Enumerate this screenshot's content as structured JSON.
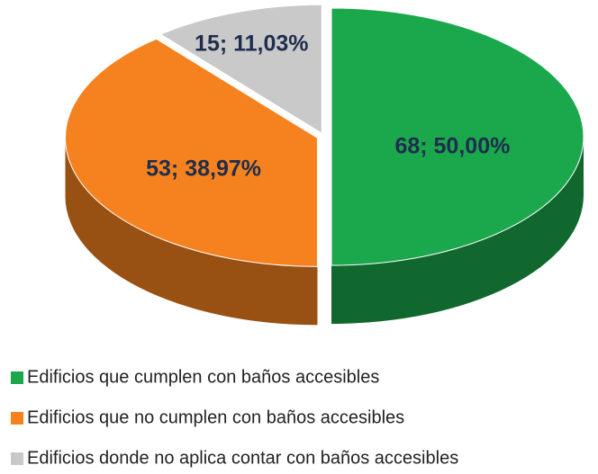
{
  "chart_data": {
    "type": "pie3d",
    "categories": [
      "Edificios que cumplen con baños accesibles",
      "Edificios que no cumplen con baños accesibles",
      "Edificios donde no aplica contar con baños accesibles"
    ],
    "values": [
      68,
      53,
      15
    ],
    "value_labels": [
      "68; 50,00%",
      "53; 38,97%",
      "15; 11,03%"
    ],
    "colors": [
      "#1ba84c",
      "#f5821f",
      "#c9c9c9"
    ]
  }
}
